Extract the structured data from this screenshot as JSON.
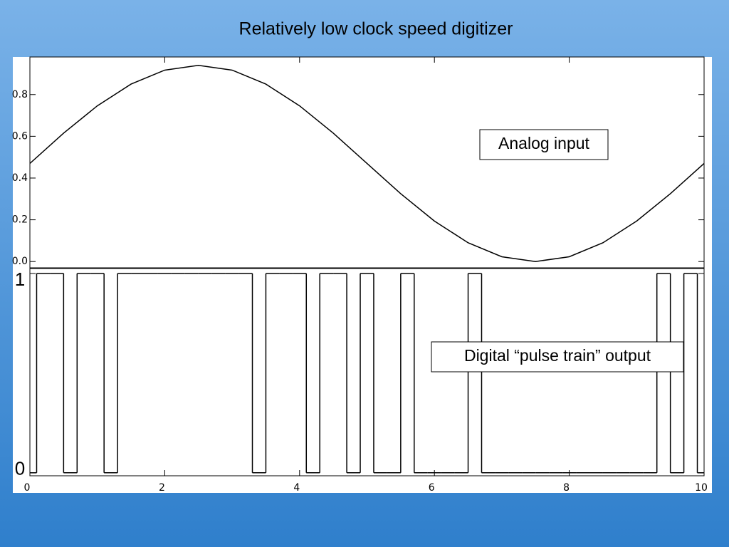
{
  "title": "Relatively low clock speed digitizer",
  "chart_data": [
    {
      "type": "line",
      "annotation": "Analog input",
      "color": "#000000",
      "x": [
        0,
        0.5,
        1,
        1.5,
        2,
        2.5,
        3,
        3.5,
        4,
        4.5,
        5,
        5.5,
        6,
        6.5,
        7,
        7.5,
        8,
        8.5,
        9,
        9.5,
        10
      ],
      "values": [
        0.47,
        0.615,
        0.746,
        0.85,
        0.917,
        0.94,
        0.917,
        0.85,
        0.746,
        0.615,
        0.47,
        0.325,
        0.194,
        0.09,
        0.023,
        0,
        0.023,
        0.09,
        0.194,
        0.325,
        0.47
      ],
      "xlim": [
        0,
        10
      ],
      "ylim": [
        -0.03,
        0.98
      ],
      "yticks": [
        {
          "value": 0,
          "label": "0.0"
        },
        {
          "value": 0.2,
          "label": "0.2"
        },
        {
          "value": 0.4,
          "label": "0.4"
        },
        {
          "value": 0.6,
          "label": "0.6"
        },
        {
          "value": 0.8,
          "label": "0.8"
        }
      ]
    },
    {
      "type": "step",
      "annotation": "Digital “pulse train” output",
      "color": "#000000",
      "x": [
        0,
        0.2,
        0.4,
        0.6,
        0.8,
        1,
        1.2,
        1.4,
        1.6,
        1.8,
        2,
        2.2,
        2.4,
        2.6,
        2.8,
        3,
        3.2,
        3.4,
        3.6,
        3.8,
        4,
        4.2,
        4.4,
        4.6,
        4.8,
        5,
        5.2,
        5.4,
        5.6,
        5.8,
        6,
        6.2,
        6.4,
        6.6,
        6.8,
        7,
        7.2,
        7.4,
        7.6,
        7.8,
        8,
        8.2,
        8.4,
        8.6,
        8.8,
        9,
        9.2,
        9.4,
        9.6,
        9.8,
        10
      ],
      "values": [
        0,
        1,
        1,
        0,
        1,
        1,
        0,
        1,
        1,
        1,
        1,
        1,
        1,
        1,
        1,
        1,
        1,
        0,
        1,
        1,
        1,
        0,
        1,
        1,
        0,
        1,
        0,
        0,
        1,
        0,
        0,
        0,
        0,
        1,
        0,
        0,
        0,
        0,
        0,
        0,
        0,
        0,
        0,
        0,
        0,
        0,
        0,
        1,
        0,
        1,
        0
      ],
      "xlim": [
        0,
        10
      ],
      "ylim": [
        -0.015,
        1.025
      ],
      "xticks": [
        0,
        2,
        4,
        6,
        8,
        10
      ],
      "yticks": [
        0,
        1
      ]
    }
  ]
}
